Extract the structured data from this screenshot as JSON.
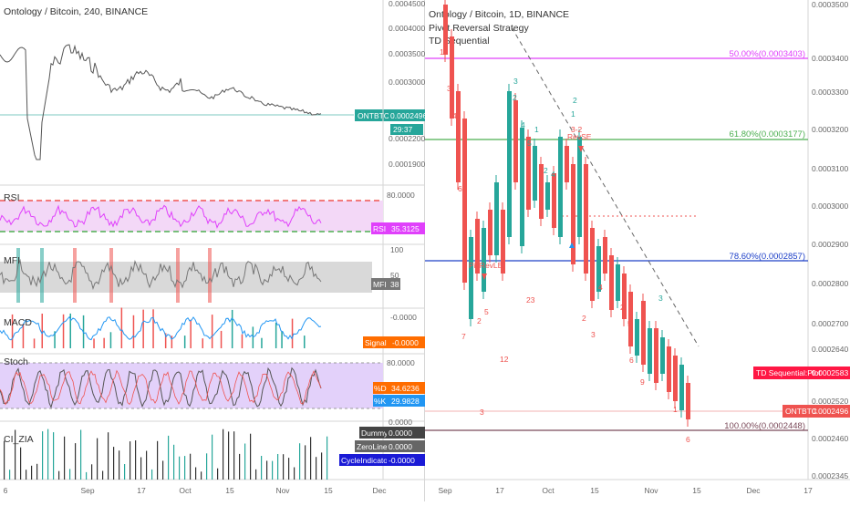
{
  "left": {
    "title": "Ontology / Bitcoin, 240, BINANCE",
    "price_axis": [
      "0.0004500",
      "0.0004000",
      "0.0003500",
      "0.0003000",
      "0.0002500",
      "0.0002200",
      "0.0001900"
    ],
    "price_tag": "0.0002496",
    "symbol_tag": "ONTBTC",
    "countdown": "29:37",
    "rsi": {
      "name": "RSI",
      "axis": "80.0000",
      "value": "35.3125",
      "tag": "RSI"
    },
    "mfi": {
      "name": "MFI",
      "axis_top": "100",
      "axis_mid": "50",
      "value": "38",
      "tag": "MFI"
    },
    "macd": {
      "name": "MACD",
      "axis": "-0.0000",
      "value": "-0.0000",
      "tag": "Signal"
    },
    "stoch": {
      "name": "Stoch",
      "axis": "80.0000",
      "axis_low": "0.0000",
      "k_value": "34.6236",
      "k_tag": "%D",
      "d_value": "29.9828",
      "d_tag": "%K"
    },
    "cizia": {
      "name": "CI_ZIA",
      "dummy_tag": "Dummy",
      "dummy_value": "0.0000",
      "zero_tag": "ZeroLine",
      "zero_value": "0.0000",
      "cycle_tag": "CycleIndicator",
      "cycle_value": "-0.0000"
    },
    "x_axis": [
      "6",
      "Sep",
      "17",
      "Oct",
      "15",
      "Nov",
      "15",
      "Dec"
    ]
  },
  "right": {
    "title": "Ontology / Bitcoin, 1D, BINANCE",
    "indicator1": "Pivot Reversal Strategy",
    "indicator2": "TD Sequential",
    "price_axis": [
      "0.0003500",
      "0.0003400",
      "0.0003300",
      "0.0003200",
      "0.0003100",
      "0.0003000",
      "0.0002900",
      "0.0002800",
      "0.0002700",
      "0.0002640",
      "0.0002520",
      "0.0002460",
      "0.0002345"
    ],
    "fib_50": "50.00%(0.0003403)",
    "fib_618": "61.80%(0.0003177)",
    "fib_786": "78.60%(0.0002857)",
    "fib_100": "100.00%(0.0002448)",
    "td_tag": "TD Sequential:Plot",
    "td_value": "0.0002583",
    "symbol_tag": "ONTBTC",
    "price_tag": "0.0002496",
    "revse_label": "RevSE",
    "pivot_label": "PivRevLE",
    "x_axis": [
      "Sep",
      "17",
      "Oct",
      "15",
      "Nov",
      "15",
      "Dec",
      "17"
    ]
  },
  "colors": {
    "up": "#26a69a",
    "down": "#ef5350",
    "fib50": "#e040fb",
    "fib618": "#4caf50",
    "fib786": "#1e40c8",
    "fib100": "#7b4a5a",
    "rsi": "#e040fb",
    "rsi_bg": "#f3d8f7",
    "stoch_bg": "#e3d1fa",
    "gray": "#9e9e9e",
    "tag_red": "#ff1744",
    "tag_orange": "#ff6d00",
    "tag_blue": "#2962ff",
    "tag_teal": "#26a69a",
    "tag_dark": "#444",
    "tag_navy": "#1a237e"
  }
}
